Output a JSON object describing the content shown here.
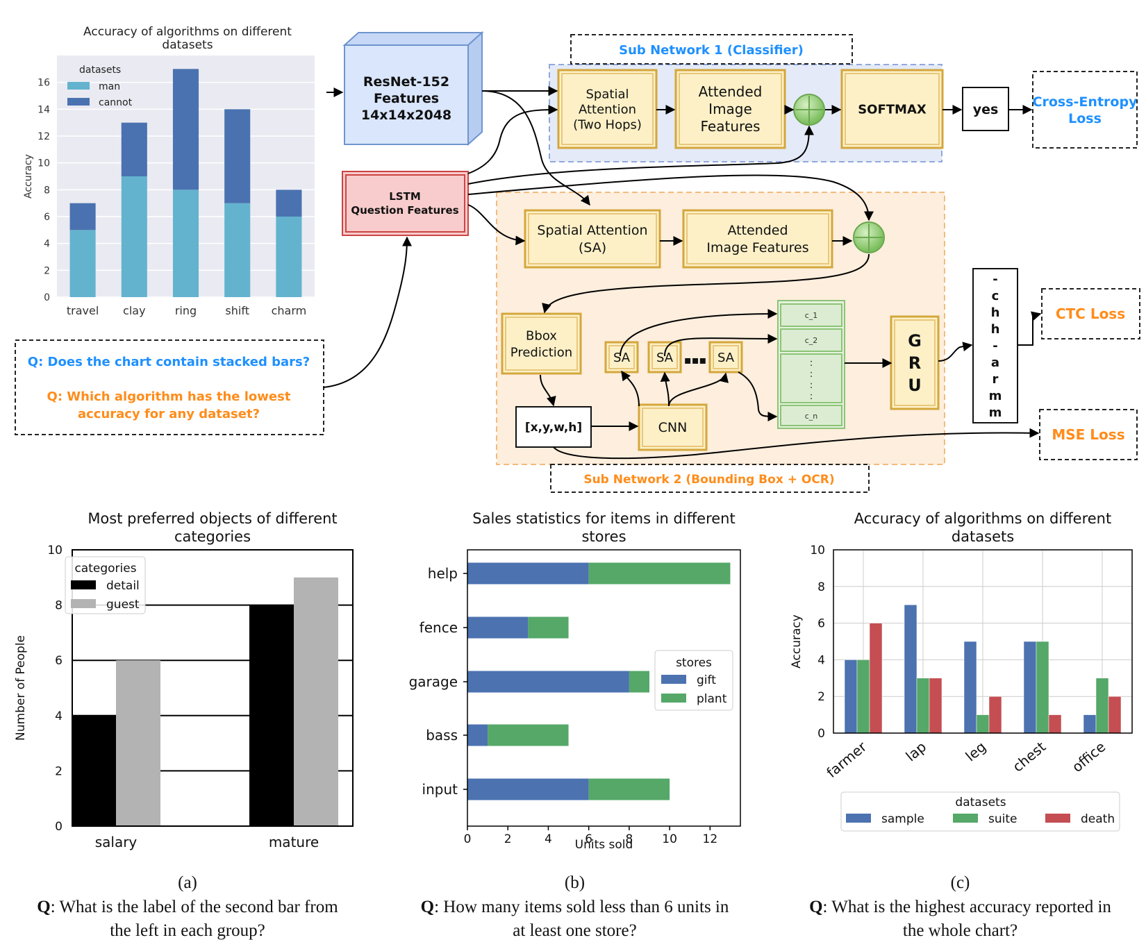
{
  "top_chart": {
    "title": "Accuracy of algorithms on different datasets",
    "title_lines": [
      "Accuracy of algorithms on different",
      "datasets"
    ],
    "ylabel": "Accuracy",
    "legend_title": "datasets",
    "colors": {
      "man": "#63b3cf",
      "cannot": "#4a72b0",
      "bg": "#eaeaf2"
    }
  },
  "chart_data": [
    {
      "type": "bar",
      "title": "Accuracy of algorithms on different datasets",
      "xlabel": "",
      "ylabel": "Accuracy",
      "categories": [
        "travel",
        "clay",
        "ring",
        "shift",
        "charm"
      ],
      "stacked": true,
      "series": [
        {
          "name": "man",
          "values": [
            5,
            9,
            8,
            7,
            6
          ]
        },
        {
          "name": "cannot",
          "values": [
            2,
            4,
            9,
            7,
            2
          ]
        }
      ],
      "ylim": [
        0,
        18
      ],
      "yticks": [
        0,
        2,
        4,
        6,
        8,
        10,
        12,
        14,
        16
      ],
      "legend_title": "datasets",
      "legend_position": "top-left",
      "grid": true
    },
    {
      "type": "bar",
      "title": "Most preferred objects of different categories",
      "xlabel": "",
      "ylabel": "Number of People",
      "categories": [
        "salary",
        "mature"
      ],
      "series": [
        {
          "name": "detail",
          "values": [
            4,
            8
          ]
        },
        {
          "name": "guest",
          "values": [
            6,
            9
          ]
        }
      ],
      "ylim": [
        0,
        10
      ],
      "yticks": [
        0,
        2,
        4,
        6,
        8,
        10
      ],
      "legend_title": "categories",
      "legend_position": "top-left",
      "grid": true
    },
    {
      "type": "bar",
      "orientation": "horizontal",
      "stacked": true,
      "title": "Sales statistics for items in different stores",
      "xlabel": "Units sold",
      "ylabel": "",
      "categories": [
        "help",
        "fence",
        "garage",
        "bass",
        "input"
      ],
      "series": [
        {
          "name": "gift",
          "values": [
            6,
            3,
            8,
            1,
            6
          ]
        },
        {
          "name": "plant",
          "values": [
            7,
            2,
            1,
            4,
            4
          ]
        }
      ],
      "xlim": [
        0,
        13.5
      ],
      "xticks": [
        0,
        2,
        4,
        6,
        8,
        10,
        12
      ],
      "legend_title": "stores",
      "legend_position": "center-right",
      "grid": false
    },
    {
      "type": "bar",
      "title": "Accuracy of algorithms on different datasets",
      "xlabel": "",
      "ylabel": "Accuracy",
      "categories": [
        "farmer",
        "lap",
        "leg",
        "chest",
        "office"
      ],
      "series": [
        {
          "name": "sample",
          "values": [
            4,
            7,
            5,
            5,
            1
          ]
        },
        {
          "name": "suite",
          "values": [
            4,
            3,
            1,
            5,
            3
          ]
        },
        {
          "name": "death",
          "values": [
            6,
            3,
            2,
            1,
            2
          ]
        }
      ],
      "ylim": [
        0,
        10
      ],
      "yticks": [
        0,
        2,
        4,
        6,
        8,
        10
      ],
      "legend_title": "datasets",
      "legend_position": "bottom",
      "grid": true
    }
  ],
  "diagram": {
    "subnet1_label": "Sub Network 1 (Classifier)",
    "subnet2_label": "Sub Network 2 (Bounding Box + OCR)",
    "resnet_lines": [
      "ResNet-152",
      "Features",
      "14x14x2048"
    ],
    "lstm_lines": [
      "LSTM",
      "Question Features"
    ],
    "spatial_attention_two_hops": [
      "Spatial",
      "Attention",
      "(Two Hops)"
    ],
    "attended_image_features_1": [
      "Attended",
      "Image",
      "Features"
    ],
    "softmax": "SOFTMAX",
    "yes": "yes",
    "cross_entropy": [
      "Cross-Entropy",
      "Loss"
    ],
    "spatial_attention_sa": [
      "Spatial Attention",
      "(SA)"
    ],
    "attended_image_features_2": [
      "Attended",
      "Image Features"
    ],
    "bbox_prediction": [
      "Bbox",
      "Prediction"
    ],
    "bbox_coords": "[x,y,w,h]",
    "cnn": "CNN",
    "sa": "SA",
    "ellipsis": "▪▪▪",
    "cells": [
      "c_1",
      "c_2",
      ":\n:\n:\n:",
      "c_n"
    ],
    "gru": [
      "G",
      "R",
      "U"
    ],
    "ocr_output": [
      "-",
      "c",
      "h",
      "h",
      "-",
      "a",
      "r",
      "m",
      "m"
    ],
    "ctc_loss": "CTC Loss",
    "mse_loss": "MSE Loss",
    "q1": "Q: Does the chart contain stacked bars?",
    "q2_lines": [
      "Q: Which algorithm has the lowest",
      "accuracy for any dataset?"
    ],
    "colors": {
      "blue_text": "#1e90ff",
      "orange_text": "#ff8c1a",
      "subnet1_bg": "#e4eaf7",
      "subnet2_bg": "#fdeedd",
      "resnet_bg": "#d9e6fb",
      "lstm_bg": "#f8cccc"
    }
  },
  "captions": {
    "a": {
      "label": "(a)",
      "q_prefix": "Q",
      "question_lines": [
        ": What is the label of the second bar from",
        "the left in each group?"
      ]
    },
    "b": {
      "label": "(b)",
      "q_prefix": "Q",
      "question_lines": [
        ": How many items sold less than 6 units in",
        "at least one store?"
      ]
    },
    "c": {
      "label": "(c)",
      "q_prefix": "Q",
      "question_lines": [
        ": What is the highest accuracy reported in",
        "the whole chart?"
      ]
    }
  }
}
